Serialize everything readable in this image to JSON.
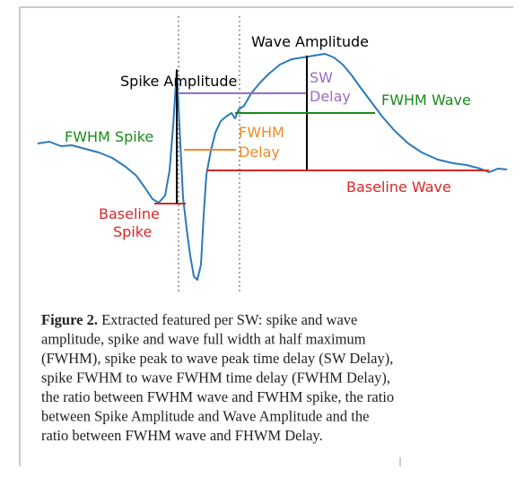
{
  "figure": {
    "labels": {
      "wave_amplitude": "Wave Amplitude",
      "spike_amplitude": "Spike Amplitude",
      "sw_delay": [
        "SW",
        "Delay"
      ],
      "fwhm_wave": "FWHM Wave",
      "fwhm_spike": "FWHM Spike",
      "fwhm_delay": [
        "FWHM",
        "Delay"
      ],
      "baseline_wave": "Baseline Wave",
      "baseline_spike": [
        "Baseline",
        "Spike"
      ]
    },
    "caption": {
      "label": "Figure 2.",
      "lines": [
        " Extracted featured per SW: spike and wave",
        "amplitude, spike and wave full width at half maximum",
        "(FWHM), spike peak to wave peak time delay (SW Delay),",
        "spike FWHM to wave FWHM time delay (FWHM Delay),",
        "the ratio between FWHM wave and FWHM spike, the ratio",
        "between Spike Amplitude and Wave Amplitude and the",
        "ratio between FWHM wave and FHWM Delay."
      ]
    }
  }
}
